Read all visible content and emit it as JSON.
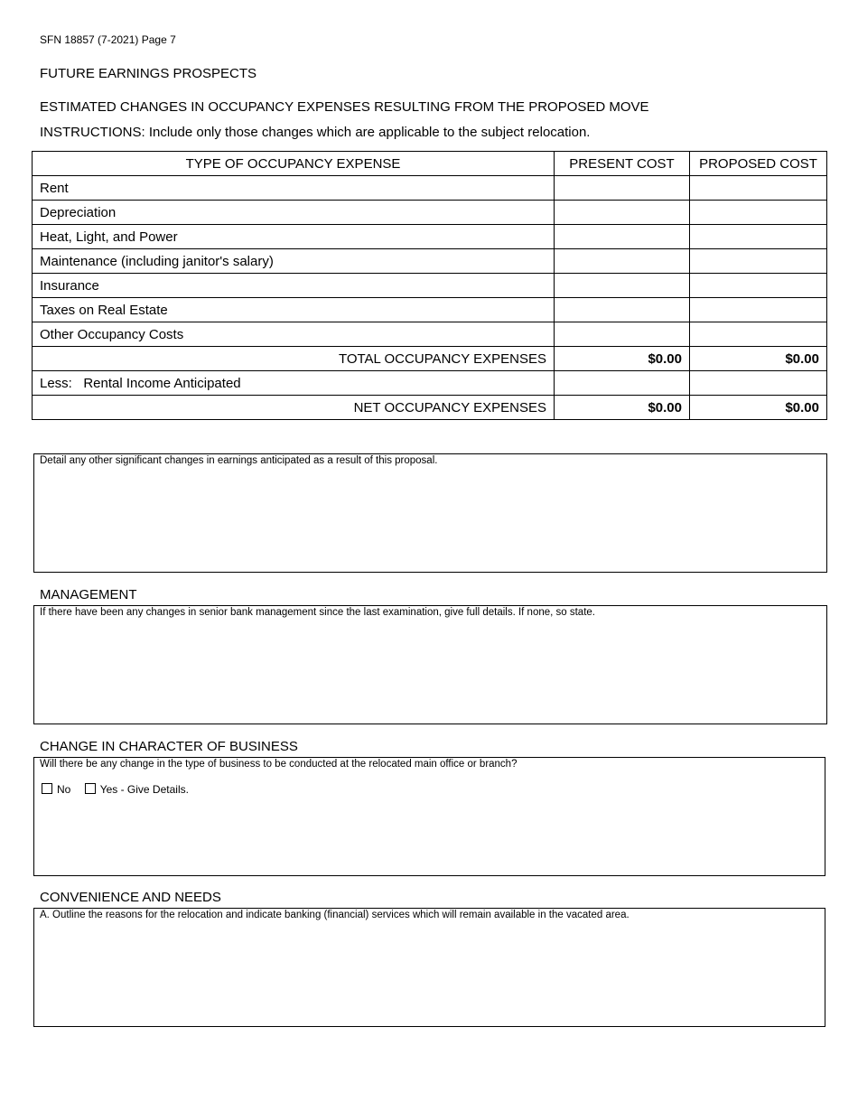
{
  "form_id": "SFN 18857 (7-2021) Page 7",
  "section_title": "FUTURE EARNINGS PROSPECTS",
  "subtitle": "ESTIMATED CHANGES IN OCCUPANCY EXPENSES RESULTING FROM THE PROPOSED MOVE",
  "instructions": "INSTRUCTIONS:  Include only those changes which are applicable to the subject relocation.",
  "table": {
    "headers": [
      "TYPE OF OCCUPANCY EXPENSE",
      "PRESENT COST",
      "PROPOSED COST"
    ],
    "rows": [
      {
        "label": "Rent",
        "present": "",
        "proposed": ""
      },
      {
        "label": "Depreciation",
        "present": "",
        "proposed": ""
      },
      {
        "label": "Heat, Light, and Power",
        "present": "",
        "proposed": ""
      },
      {
        "label": "Maintenance (including janitor's salary)",
        "present": "",
        "proposed": ""
      },
      {
        "label": "Insurance",
        "present": "",
        "proposed": ""
      },
      {
        "label": "Taxes on Real Estate",
        "present": "",
        "proposed": ""
      },
      {
        "label": "Other Occupancy Costs",
        "present": "",
        "proposed": ""
      }
    ],
    "total": {
      "label": "TOTAL OCCUPANCY EXPENSES",
      "present": "$0.00",
      "proposed": "$0.00"
    },
    "less": {
      "label": "Less:   Rental Income Anticipated",
      "present": "",
      "proposed": ""
    },
    "net": {
      "label": "NET OCCUPANCY EXPENSES",
      "present": "$0.00",
      "proposed": "$0.00"
    }
  },
  "earnings_detail": {
    "prompt": "Detail any other significant changes in earnings anticipated as a result of this proposal.",
    "value": ""
  },
  "management": {
    "title": "MANAGEMENT",
    "prompt": "If there have been any changes in senior bank management since the last examination, give full details.  If none, so state.",
    "value": ""
  },
  "change_business": {
    "title": "CHANGE IN CHARACTER OF BUSINESS",
    "prompt": "Will there be any change in the type of business to be conducted at the relocated main office or branch?",
    "no_label": "No",
    "yes_label": "Yes - Give Details.",
    "no_checked": false,
    "yes_checked": false
  },
  "convenience": {
    "title": "CONVENIENCE AND NEEDS",
    "prompt": "A.  Outline the reasons for the relocation and indicate banking (financial) services which will remain available in the vacated area.",
    "value": ""
  }
}
